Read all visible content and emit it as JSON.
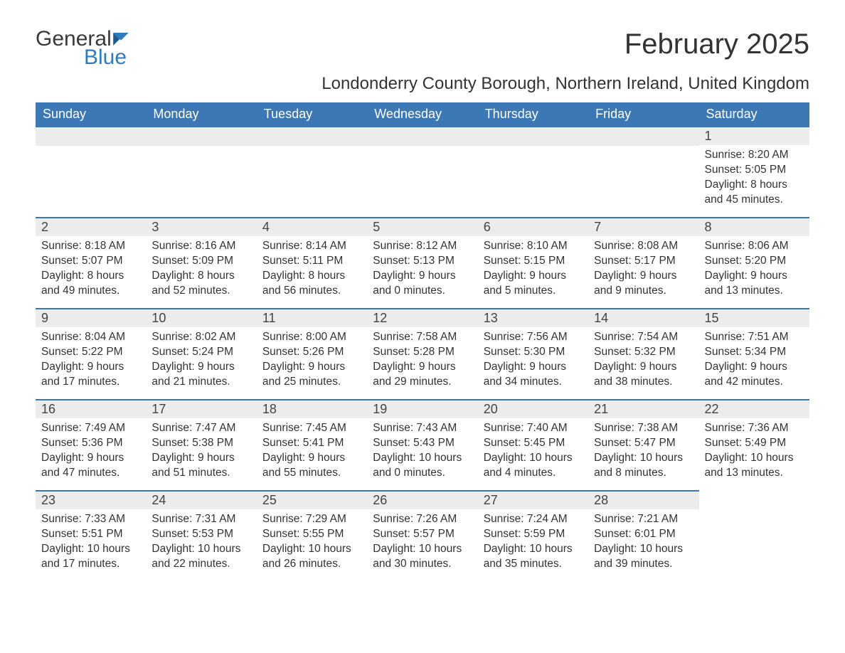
{
  "branding": {
    "logo_word1": "General",
    "logo_word2": "Blue",
    "logo_text_color": "#3a3a3a",
    "logo_accent_color": "#2f7bbf"
  },
  "header": {
    "month_title": "February 2025",
    "location": "Londonderry County Borough, Northern Ireland, United Kingdom"
  },
  "styling": {
    "header_bg": "#3b78b5",
    "header_text": "#ffffff",
    "daynum_bg": "#ececec",
    "daynum_border": "#3b78b5",
    "page_bg": "#ffffff",
    "body_text": "#333333",
    "title_fontsize": 40,
    "subtitle_fontsize": 24,
    "dayhdr_fontsize": 18,
    "cell_fontsize": 15.5
  },
  "day_headers": [
    "Sunday",
    "Monday",
    "Tuesday",
    "Wednesday",
    "Thursday",
    "Friday",
    "Saturday"
  ],
  "weeks": [
    [
      {
        "empty": true
      },
      {
        "empty": true
      },
      {
        "empty": true
      },
      {
        "empty": true
      },
      {
        "empty": true
      },
      {
        "empty": true
      },
      {
        "num": "1",
        "sunrise": "Sunrise: 8:20 AM",
        "sunset": "Sunset: 5:05 PM",
        "daylight1": "Daylight: 8 hours",
        "daylight2": "and 45 minutes."
      }
    ],
    [
      {
        "num": "2",
        "sunrise": "Sunrise: 8:18 AM",
        "sunset": "Sunset: 5:07 PM",
        "daylight1": "Daylight: 8 hours",
        "daylight2": "and 49 minutes."
      },
      {
        "num": "3",
        "sunrise": "Sunrise: 8:16 AM",
        "sunset": "Sunset: 5:09 PM",
        "daylight1": "Daylight: 8 hours",
        "daylight2": "and 52 minutes."
      },
      {
        "num": "4",
        "sunrise": "Sunrise: 8:14 AM",
        "sunset": "Sunset: 5:11 PM",
        "daylight1": "Daylight: 8 hours",
        "daylight2": "and 56 minutes."
      },
      {
        "num": "5",
        "sunrise": "Sunrise: 8:12 AM",
        "sunset": "Sunset: 5:13 PM",
        "daylight1": "Daylight: 9 hours",
        "daylight2": "and 0 minutes."
      },
      {
        "num": "6",
        "sunrise": "Sunrise: 8:10 AM",
        "sunset": "Sunset: 5:15 PM",
        "daylight1": "Daylight: 9 hours",
        "daylight2": "and 5 minutes."
      },
      {
        "num": "7",
        "sunrise": "Sunrise: 8:08 AM",
        "sunset": "Sunset: 5:17 PM",
        "daylight1": "Daylight: 9 hours",
        "daylight2": "and 9 minutes."
      },
      {
        "num": "8",
        "sunrise": "Sunrise: 8:06 AM",
        "sunset": "Sunset: 5:20 PM",
        "daylight1": "Daylight: 9 hours",
        "daylight2": "and 13 minutes."
      }
    ],
    [
      {
        "num": "9",
        "sunrise": "Sunrise: 8:04 AM",
        "sunset": "Sunset: 5:22 PM",
        "daylight1": "Daylight: 9 hours",
        "daylight2": "and 17 minutes."
      },
      {
        "num": "10",
        "sunrise": "Sunrise: 8:02 AM",
        "sunset": "Sunset: 5:24 PM",
        "daylight1": "Daylight: 9 hours",
        "daylight2": "and 21 minutes."
      },
      {
        "num": "11",
        "sunrise": "Sunrise: 8:00 AM",
        "sunset": "Sunset: 5:26 PM",
        "daylight1": "Daylight: 9 hours",
        "daylight2": "and 25 minutes."
      },
      {
        "num": "12",
        "sunrise": "Sunrise: 7:58 AM",
        "sunset": "Sunset: 5:28 PM",
        "daylight1": "Daylight: 9 hours",
        "daylight2": "and 29 minutes."
      },
      {
        "num": "13",
        "sunrise": "Sunrise: 7:56 AM",
        "sunset": "Sunset: 5:30 PM",
        "daylight1": "Daylight: 9 hours",
        "daylight2": "and 34 minutes."
      },
      {
        "num": "14",
        "sunrise": "Sunrise: 7:54 AM",
        "sunset": "Sunset: 5:32 PM",
        "daylight1": "Daylight: 9 hours",
        "daylight2": "and 38 minutes."
      },
      {
        "num": "15",
        "sunrise": "Sunrise: 7:51 AM",
        "sunset": "Sunset: 5:34 PM",
        "daylight1": "Daylight: 9 hours",
        "daylight2": "and 42 minutes."
      }
    ],
    [
      {
        "num": "16",
        "sunrise": "Sunrise: 7:49 AM",
        "sunset": "Sunset: 5:36 PM",
        "daylight1": "Daylight: 9 hours",
        "daylight2": "and 47 minutes."
      },
      {
        "num": "17",
        "sunrise": "Sunrise: 7:47 AM",
        "sunset": "Sunset: 5:38 PM",
        "daylight1": "Daylight: 9 hours",
        "daylight2": "and 51 minutes."
      },
      {
        "num": "18",
        "sunrise": "Sunrise: 7:45 AM",
        "sunset": "Sunset: 5:41 PM",
        "daylight1": "Daylight: 9 hours",
        "daylight2": "and 55 minutes."
      },
      {
        "num": "19",
        "sunrise": "Sunrise: 7:43 AM",
        "sunset": "Sunset: 5:43 PM",
        "daylight1": "Daylight: 10 hours",
        "daylight2": "and 0 minutes."
      },
      {
        "num": "20",
        "sunrise": "Sunrise: 7:40 AM",
        "sunset": "Sunset: 5:45 PM",
        "daylight1": "Daylight: 10 hours",
        "daylight2": "and 4 minutes."
      },
      {
        "num": "21",
        "sunrise": "Sunrise: 7:38 AM",
        "sunset": "Sunset: 5:47 PM",
        "daylight1": "Daylight: 10 hours",
        "daylight2": "and 8 minutes."
      },
      {
        "num": "22",
        "sunrise": "Sunrise: 7:36 AM",
        "sunset": "Sunset: 5:49 PM",
        "daylight1": "Daylight: 10 hours",
        "daylight2": "and 13 minutes."
      }
    ],
    [
      {
        "num": "23",
        "sunrise": "Sunrise: 7:33 AM",
        "sunset": "Sunset: 5:51 PM",
        "daylight1": "Daylight: 10 hours",
        "daylight2": "and 17 minutes."
      },
      {
        "num": "24",
        "sunrise": "Sunrise: 7:31 AM",
        "sunset": "Sunset: 5:53 PM",
        "daylight1": "Daylight: 10 hours",
        "daylight2": "and 22 minutes."
      },
      {
        "num": "25",
        "sunrise": "Sunrise: 7:29 AM",
        "sunset": "Sunset: 5:55 PM",
        "daylight1": "Daylight: 10 hours",
        "daylight2": "and 26 minutes."
      },
      {
        "num": "26",
        "sunrise": "Sunrise: 7:26 AM",
        "sunset": "Sunset: 5:57 PM",
        "daylight1": "Daylight: 10 hours",
        "daylight2": "and 30 minutes."
      },
      {
        "num": "27",
        "sunrise": "Sunrise: 7:24 AM",
        "sunset": "Sunset: 5:59 PM",
        "daylight1": "Daylight: 10 hours",
        "daylight2": "and 35 minutes."
      },
      {
        "num": "28",
        "sunrise": "Sunrise: 7:21 AM",
        "sunset": "Sunset: 6:01 PM",
        "daylight1": "Daylight: 10 hours",
        "daylight2": "and 39 minutes."
      },
      {
        "empty": true,
        "trailing": true
      }
    ]
  ]
}
